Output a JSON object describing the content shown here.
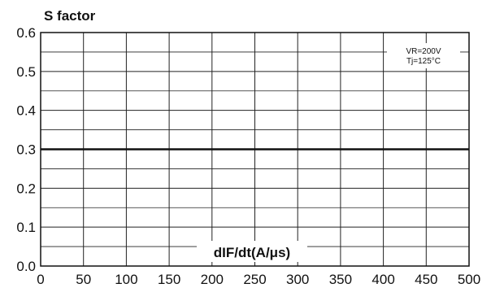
{
  "chart_data": {
    "type": "line",
    "title": "",
    "xlabel": "dIF/dt(A/μs)",
    "ylabel": "S factor",
    "xlim": [
      0,
      500
    ],
    "ylim": [
      0,
      0.6
    ],
    "xticks": [
      "0",
      "50",
      "100",
      "150",
      "200",
      "250",
      "300",
      "350",
      "400",
      "450",
      "500"
    ],
    "yticks": [
      "0.0",
      "0.1",
      "0.2",
      "0.3",
      "0.4",
      "0.5",
      "0.6"
    ],
    "grid": true,
    "conditions": [
      "VR=200V",
      "Tj=125°C"
    ],
    "series": [
      {
        "x": [
          0,
          500
        ],
        "y": [
          0.3,
          0.3
        ],
        "color": "#111111"
      }
    ]
  }
}
